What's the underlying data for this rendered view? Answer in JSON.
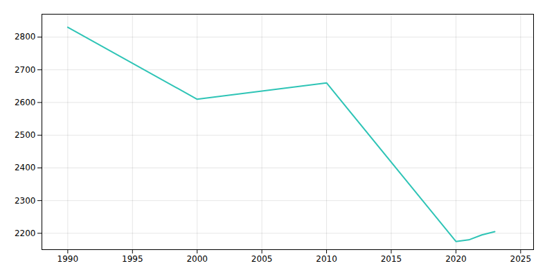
{
  "chart_data": {
    "type": "line",
    "x": [
      1990,
      2000,
      2010,
      2020,
      2021,
      2022,
      2023
    ],
    "values": [
      2830,
      2610,
      2660,
      2175,
      2180,
      2195,
      2205
    ],
    "color": "#2ec4b6",
    "xlim": [
      1988,
      2026
    ],
    "ylim": [
      2150,
      2870
    ],
    "xticks": [
      1990,
      1995,
      2000,
      2005,
      2010,
      2015,
      2020,
      2025
    ],
    "yticks": [
      2200,
      2300,
      2400,
      2500,
      2600,
      2700,
      2800
    ],
    "grid": true
  }
}
